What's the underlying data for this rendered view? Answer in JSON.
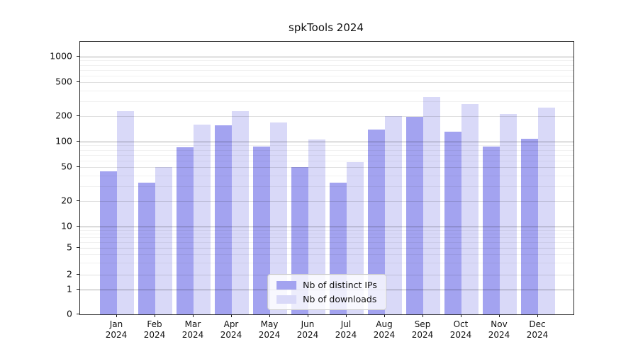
{
  "chart_data": {
    "type": "bar",
    "title": "spkTools 2024",
    "categories": [
      {
        "month": "Jan",
        "year": "2024"
      },
      {
        "month": "Feb",
        "year": "2024"
      },
      {
        "month": "Mar",
        "year": "2024"
      },
      {
        "month": "Apr",
        "year": "2024"
      },
      {
        "month": "May",
        "year": "2024"
      },
      {
        "month": "Jun",
        "year": "2024"
      },
      {
        "month": "Jul",
        "year": "2024"
      },
      {
        "month": "Aug",
        "year": "2024"
      },
      {
        "month": "Sep",
        "year": "2024"
      },
      {
        "month": "Oct",
        "year": "2024"
      },
      {
        "month": "Nov",
        "year": "2024"
      },
      {
        "month": "Dec",
        "year": "2024"
      }
    ],
    "series": [
      {
        "name": "Nb of distinct IPs",
        "color": "#a3a3f0",
        "values": [
          45,
          33,
          85,
          155,
          87,
          50,
          33,
          140,
          197,
          132,
          87,
          108
        ]
      },
      {
        "name": "Nb of downloads",
        "color": "#d9d9f8",
        "values": [
          230,
          50,
          160,
          230,
          168,
          105,
          57,
          200,
          335,
          275,
          210,
          250
        ]
      }
    ],
    "y_axis": {
      "scale": "symlog",
      "ticks": [
        0,
        1,
        2,
        5,
        10,
        20,
        50,
        100,
        200,
        500,
        1000
      ],
      "ylim": [
        0,
        1500
      ],
      "major_gridlines": [
        1,
        10,
        100,
        1000
      ],
      "medium_gridlines": [
        2,
        5,
        20,
        50,
        200,
        500
      ],
      "minor_gridlines": [
        3,
        4,
        6,
        7,
        8,
        9,
        30,
        40,
        60,
        70,
        80,
        90,
        300,
        400,
        600,
        700,
        800,
        900
      ]
    },
    "legend": {
      "position": "lower center",
      "entries": [
        "Nb of distinct IPs",
        "Nb of downloads"
      ]
    }
  }
}
